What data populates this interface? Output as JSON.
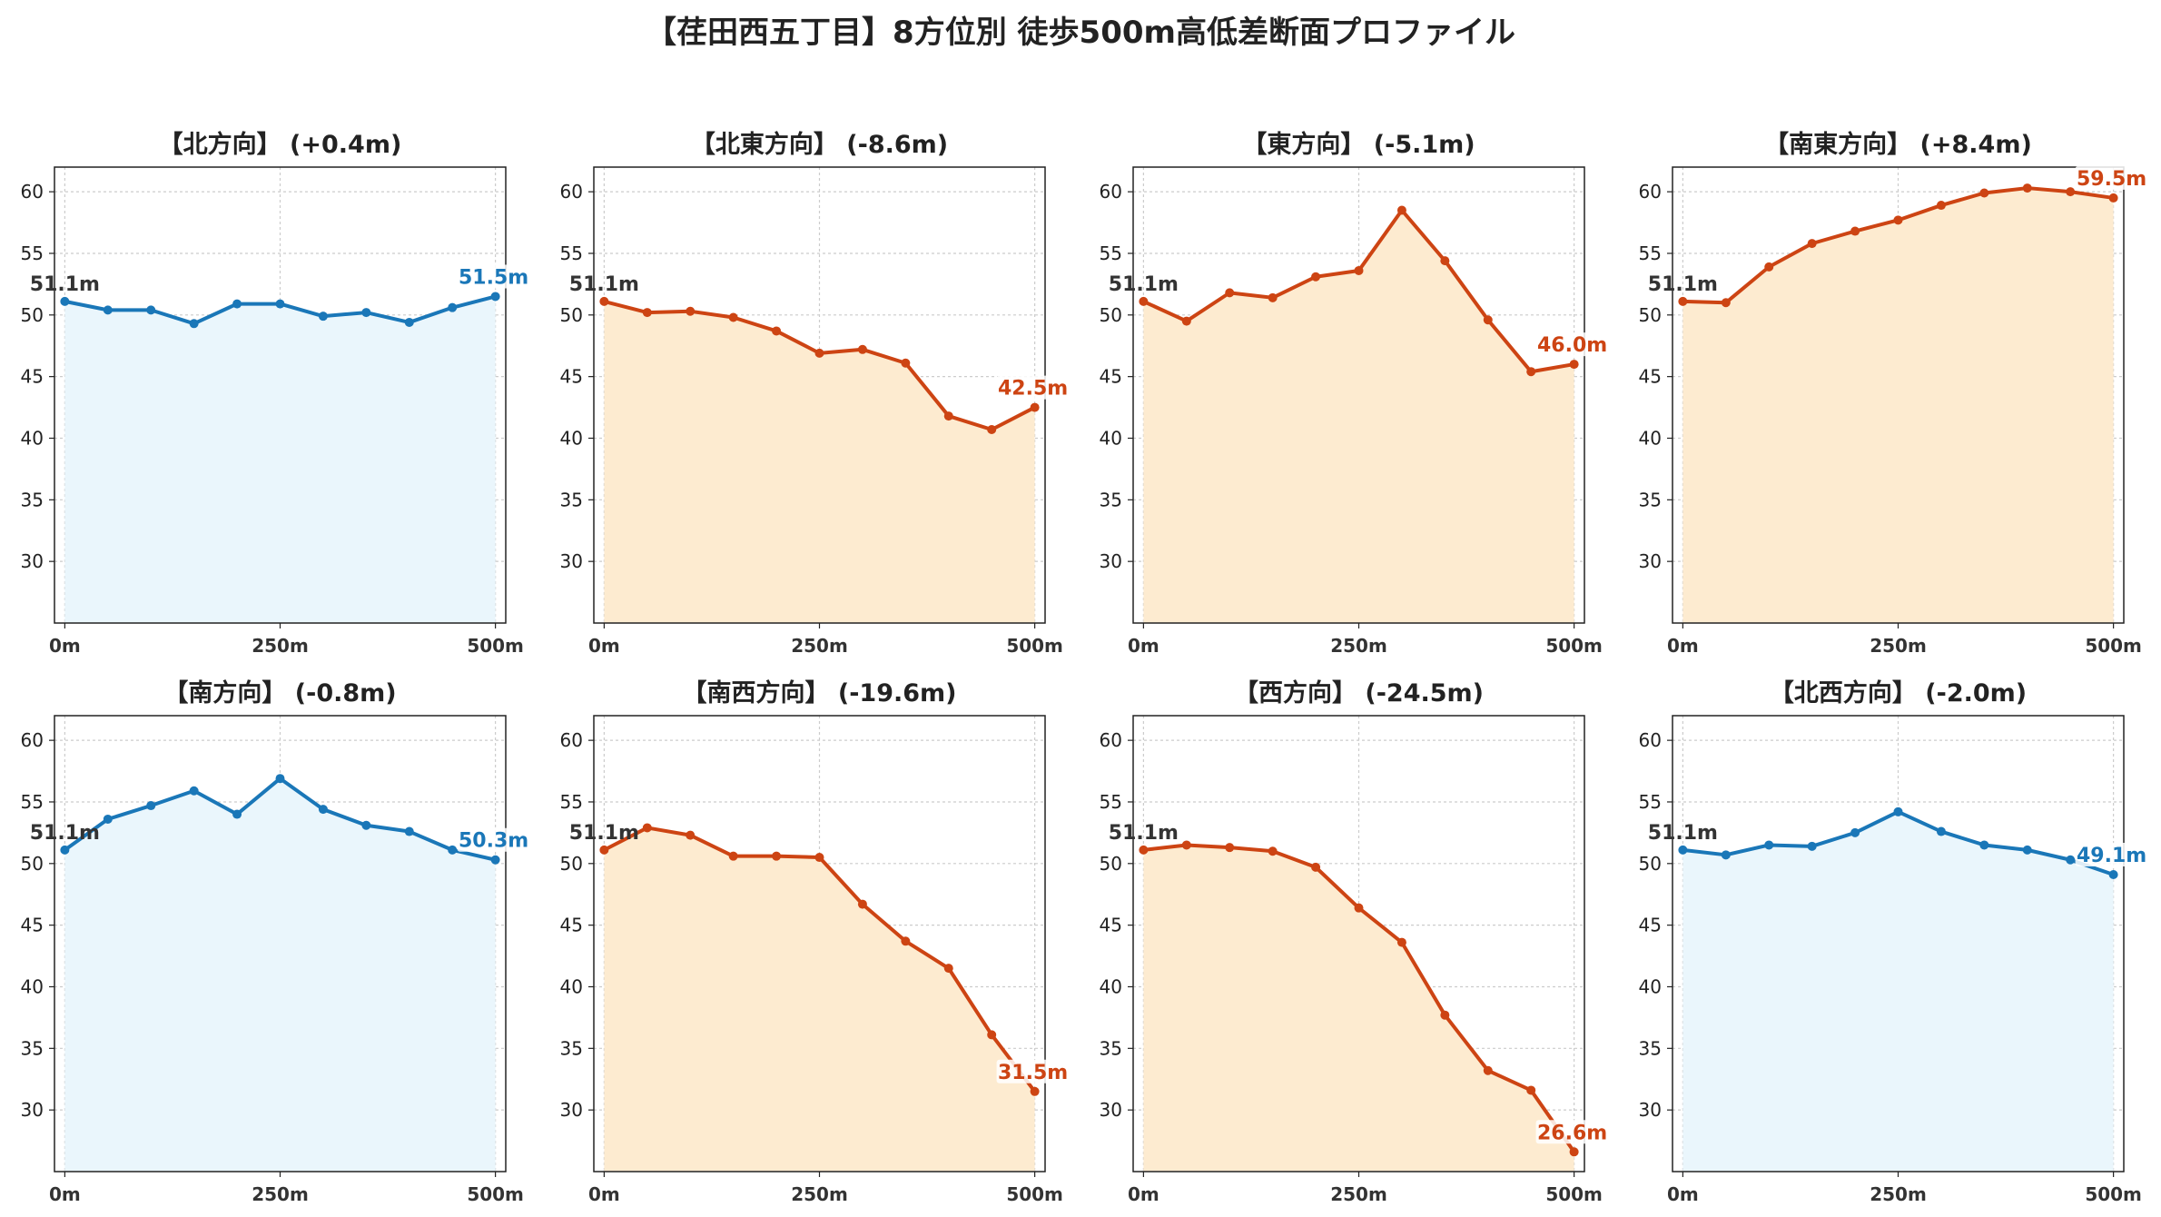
{
  "title": "【荏田西五丁目】8方位別 徒歩500m高低差断面プロファイル",
  "colors": {
    "up_line": "#1a77b8",
    "up_fill": "#eaf6fc",
    "down_line": "#cd4413",
    "down_fill": "#fdebd0",
    "start_label": "#333333"
  },
  "chart_data": [
    {
      "type": "area",
      "title": "【北方向】 (+0.4m)",
      "trend": "flat",
      "x": [
        0,
        50,
        100,
        150,
        200,
        250,
        300,
        350,
        400,
        450,
        500
      ],
      "y": [
        51.1,
        50.4,
        50.4,
        49.3,
        50.9,
        50.9,
        49.9,
        50.2,
        49.4,
        50.6,
        51.5
      ],
      "start_label": "51.1m",
      "end_label": "51.5m"
    },
    {
      "type": "area",
      "title": "【北東方向】 (-8.6m)",
      "trend": "down",
      "x": [
        0,
        50,
        100,
        150,
        200,
        250,
        300,
        350,
        400,
        450,
        500
      ],
      "y": [
        51.1,
        50.2,
        50.3,
        49.8,
        48.7,
        46.9,
        47.2,
        46.1,
        41.8,
        40.7,
        42.5
      ],
      "start_label": "51.1m",
      "end_label": "42.5m"
    },
    {
      "type": "area",
      "title": "【東方向】 (-5.1m)",
      "trend": "down",
      "x": [
        0,
        50,
        100,
        150,
        200,
        250,
        300,
        350,
        400,
        450,
        500
      ],
      "y": [
        51.1,
        49.5,
        51.8,
        51.4,
        53.1,
        53.6,
        58.5,
        54.4,
        49.6,
        45.4,
        46.0
      ],
      "start_label": "51.1m",
      "end_label": "46.0m"
    },
    {
      "type": "area",
      "title": "【南東方向】 (+8.4m)",
      "trend": "up",
      "x": [
        0,
        50,
        100,
        150,
        200,
        250,
        300,
        350,
        400,
        450,
        500
      ],
      "y": [
        51.1,
        51.0,
        53.9,
        55.8,
        56.8,
        57.7,
        58.9,
        59.9,
        60.3,
        60.0,
        59.5
      ],
      "start_label": "51.1m",
      "end_label": "59.5m"
    },
    {
      "type": "area",
      "title": "【南方向】 (-0.8m)",
      "trend": "flat",
      "x": [
        0,
        50,
        100,
        150,
        200,
        250,
        300,
        350,
        400,
        450,
        500
      ],
      "y": [
        51.1,
        53.6,
        54.7,
        55.9,
        54.0,
        56.9,
        54.4,
        53.1,
        52.6,
        51.1,
        50.3
      ],
      "start_label": "51.1m",
      "end_label": "50.3m"
    },
    {
      "type": "area",
      "title": "【南西方向】 (-19.6m)",
      "trend": "down",
      "x": [
        0,
        50,
        100,
        150,
        200,
        250,
        300,
        350,
        400,
        450,
        500
      ],
      "y": [
        51.1,
        52.9,
        52.3,
        50.6,
        50.6,
        50.5,
        46.7,
        43.7,
        41.5,
        36.1,
        31.5
      ],
      "start_label": "51.1m",
      "end_label": "31.5m"
    },
    {
      "type": "area",
      "title": "【西方向】 (-24.5m)",
      "trend": "down",
      "x": [
        0,
        50,
        100,
        150,
        200,
        250,
        300,
        350,
        400,
        450,
        500
      ],
      "y": [
        51.1,
        51.5,
        51.3,
        51.0,
        49.7,
        46.4,
        43.6,
        37.7,
        33.2,
        31.6,
        26.6
      ],
      "start_label": "51.1m",
      "end_label": "26.6m"
    },
    {
      "type": "area",
      "title": "【北西方向】 (-2.0m)",
      "trend": "flat",
      "x": [
        0,
        50,
        100,
        150,
        200,
        250,
        300,
        350,
        400,
        450,
        500
      ],
      "y": [
        51.1,
        50.7,
        51.5,
        51.4,
        52.5,
        54.2,
        52.6,
        51.5,
        51.1,
        50.3,
        49.1
      ],
      "start_label": "51.1m",
      "end_label": "49.1m"
    }
  ],
  "axes": {
    "ylim": [
      25,
      62
    ],
    "yticks": [
      30,
      35,
      40,
      45,
      50,
      55,
      60
    ],
    "ytick_labels": [
      "30",
      "35",
      "40",
      "45",
      "50",
      "55",
      "60"
    ],
    "xlim": [
      -12,
      512
    ],
    "xticks": [
      0,
      250,
      500
    ],
    "xtick_labels": [
      "0m",
      "250m",
      "500m"
    ],
    "grid": true
  }
}
